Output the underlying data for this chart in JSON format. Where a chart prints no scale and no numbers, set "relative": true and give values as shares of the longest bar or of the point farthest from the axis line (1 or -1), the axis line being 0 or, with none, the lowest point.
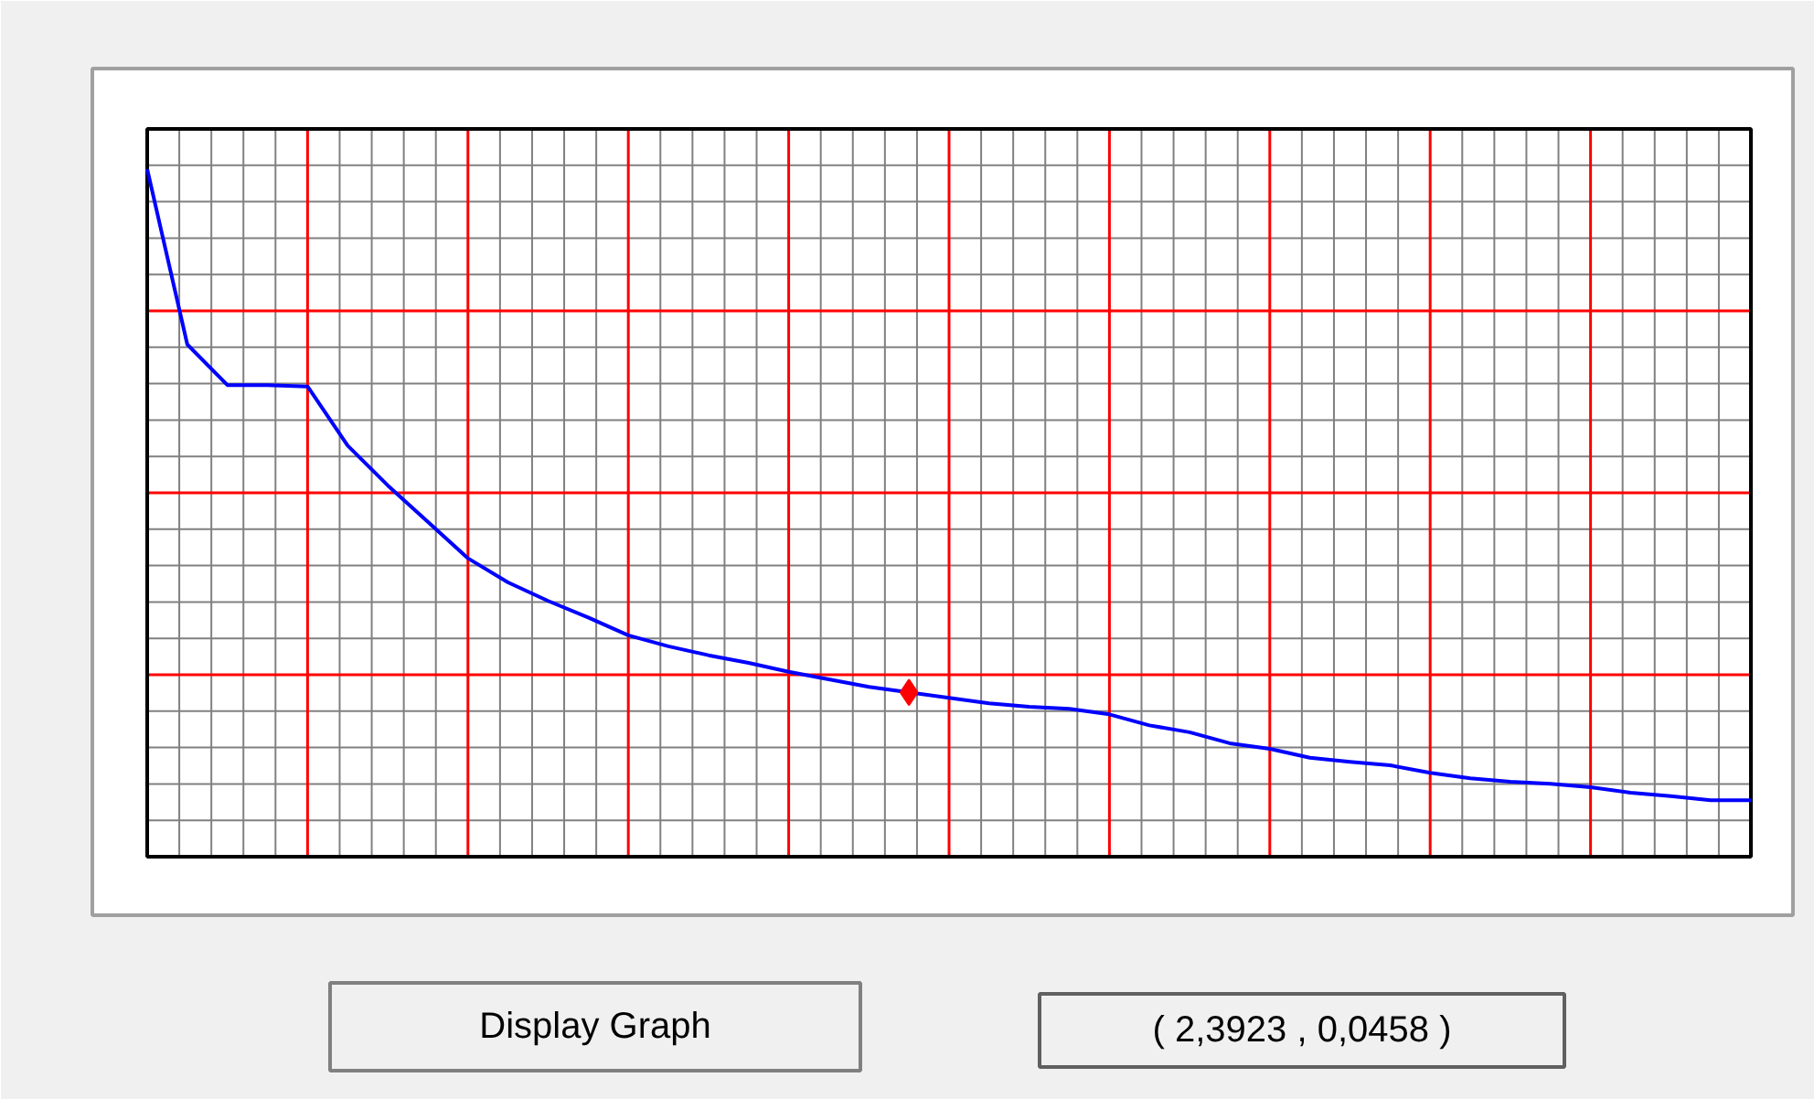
{
  "chart_data": {
    "type": "line",
    "relative": true,
    "grid": true,
    "tick_labels": false,
    "categories": [
      null,
      null,
      null,
      null,
      null,
      null,
      null,
      null,
      null,
      null,
      null,
      null,
      null,
      null,
      null,
      null,
      null,
      null,
      null,
      null,
      null,
      null,
      null,
      null,
      null,
      null,
      null,
      null,
      null,
      null,
      null,
      null,
      null,
      null,
      null,
      null,
      null,
      null,
      null,
      null,
      null
    ],
    "series": [
      {
        "color": "#0000ff",
        "values": [
          1.0,
          0.745,
          0.686,
          0.686,
          0.684,
          0.598,
          0.54,
          0.487,
          0.434,
          0.399,
          0.372,
          0.348,
          0.322,
          0.306,
          0.293,
          0.282,
          0.269,
          0.258,
          0.247,
          0.239,
          0.231,
          0.223,
          0.218,
          0.215,
          0.207,
          0.191,
          0.181,
          0.165,
          0.157,
          0.144,
          0.138,
          0.133,
          0.122,
          0.114,
          0.109,
          0.106,
          0.101,
          0.093,
          0.088,
          0.082,
          0.082
        ]
      }
    ],
    "annotations": [
      "Display Graph",
      "( 2,3923 , 0,0458 )"
    ]
  }
}
